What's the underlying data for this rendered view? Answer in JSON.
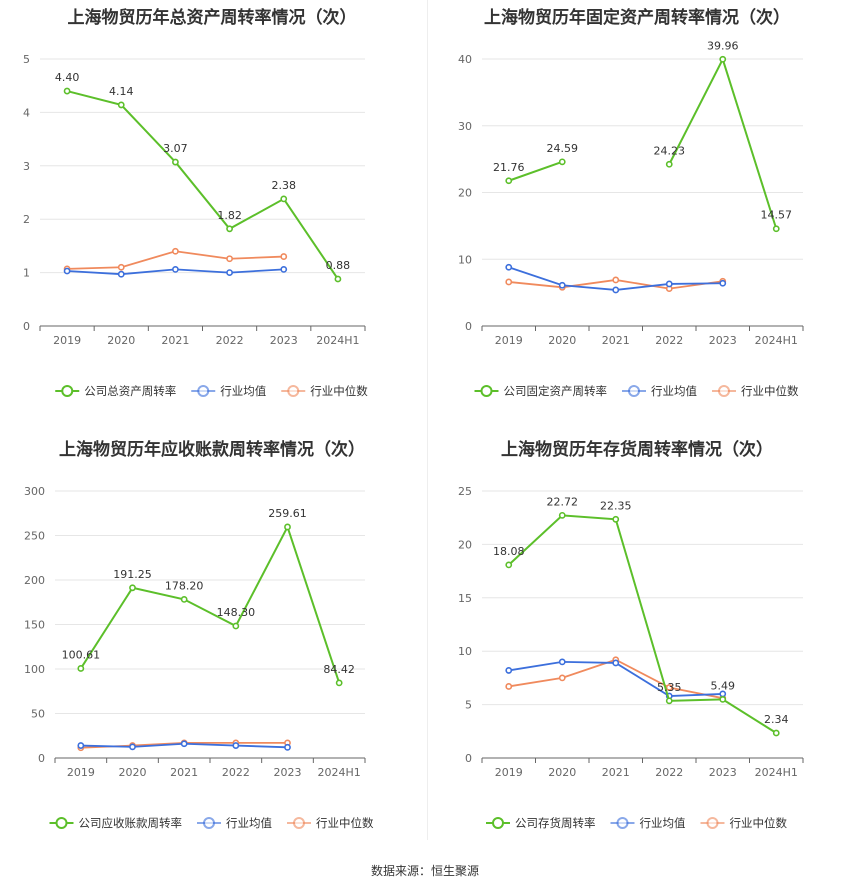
{
  "source": "数据来源：恒生聚源",
  "legend_common": {
    "avg": "行业均值",
    "median": "行业中位数"
  },
  "colors": {
    "company": "#5cbf2a",
    "avg": "#3c6fdc",
    "median": "#f08a5d",
    "grid": "#e6e6e6",
    "axis": "#666666"
  },
  "chart_data": [
    {
      "type": "line",
      "title": "上海物贸历年总资产周转率情况（次）",
      "categories": [
        "2019",
        "2020",
        "2021",
        "2022",
        "2023",
        "2024H1"
      ],
      "ylim": [
        0,
        5
      ],
      "yticks": [
        0,
        1,
        2,
        3,
        4,
        5
      ],
      "series": [
        {
          "name": "公司总资产周转率",
          "role": "company",
          "values": [
            4.4,
            4.14,
            3.07,
            1.82,
            2.38,
            0.88
          ],
          "labels": [
            "4.40",
            "4.14",
            "3.07",
            "1.82",
            "2.38",
            "0.88"
          ]
        },
        {
          "name": "行业均值",
          "role": "avg",
          "values": [
            1.03,
            0.97,
            1.06,
            1.0,
            1.06,
            null
          ]
        },
        {
          "name": "行业中位数",
          "role": "median",
          "values": [
            1.07,
            1.1,
            1.4,
            1.26,
            1.3,
            null
          ]
        }
      ]
    },
    {
      "type": "line",
      "title": "上海物贸历年固定资产周转率情况（次）",
      "categories": [
        "2019",
        "2020",
        "2021",
        "2022",
        "2023",
        "2024H1"
      ],
      "ylim": [
        0,
        40
      ],
      "yticks": [
        0,
        10,
        20,
        30,
        40
      ],
      "series": [
        {
          "name": "公司固定资产周转率",
          "role": "company",
          "values": [
            21.76,
            24.59,
            null,
            24.23,
            39.96,
            14.57
          ],
          "labels": [
            "21.76",
            "24.59",
            "",
            "24.23",
            "39.96",
            "14.57"
          ]
        },
        {
          "name": "行业均值",
          "role": "avg",
          "values": [
            8.8,
            6.1,
            5.4,
            6.3,
            6.4,
            null
          ]
        },
        {
          "name": "行业中位数",
          "role": "median",
          "values": [
            6.6,
            5.8,
            6.9,
            5.6,
            6.7,
            null
          ]
        }
      ]
    },
    {
      "type": "line",
      "title": "上海物贸历年应收账款周转率情况（次）",
      "categories": [
        "2019",
        "2020",
        "2021",
        "2022",
        "2023",
        "2024H1"
      ],
      "ylim": [
        0,
        300
      ],
      "yticks": [
        0,
        50,
        100,
        150,
        200,
        250,
        300
      ],
      "series": [
        {
          "name": "公司应收账款周转率",
          "role": "company",
          "values": [
            100.61,
            191.25,
            178.2,
            148.3,
            259.61,
            84.42
          ],
          "labels": [
            "100.61",
            "191.25",
            "178.20",
            "148.30",
            "259.61",
            "84.42"
          ]
        },
        {
          "name": "行业均值",
          "role": "avg",
          "values": [
            14,
            12.5,
            16,
            14,
            12,
            null
          ]
        },
        {
          "name": "行业中位数",
          "role": "median",
          "values": [
            11.5,
            14,
            17,
            17,
            17,
            null
          ]
        }
      ]
    },
    {
      "type": "line",
      "title": "上海物贸历年存货周转率情况（次）",
      "categories": [
        "2019",
        "2020",
        "2021",
        "2022",
        "2023",
        "2024H1"
      ],
      "ylim": [
        0,
        25
      ],
      "yticks": [
        0,
        5,
        10,
        15,
        20,
        25
      ],
      "series": [
        {
          "name": "公司存货周转率",
          "role": "company",
          "values": [
            18.08,
            22.72,
            22.35,
            5.35,
            5.49,
            2.34
          ],
          "labels": [
            "18.08",
            "22.72",
            "22.35",
            "5.35",
            "5.49",
            "2.34"
          ]
        },
        {
          "name": "行业均值",
          "role": "avg",
          "values": [
            8.2,
            9.0,
            8.9,
            5.8,
            6.0,
            null
          ]
        },
        {
          "name": "行业中位数",
          "role": "median",
          "values": [
            6.7,
            7.5,
            9.2,
            6.6,
            5.6,
            null
          ]
        }
      ]
    }
  ]
}
